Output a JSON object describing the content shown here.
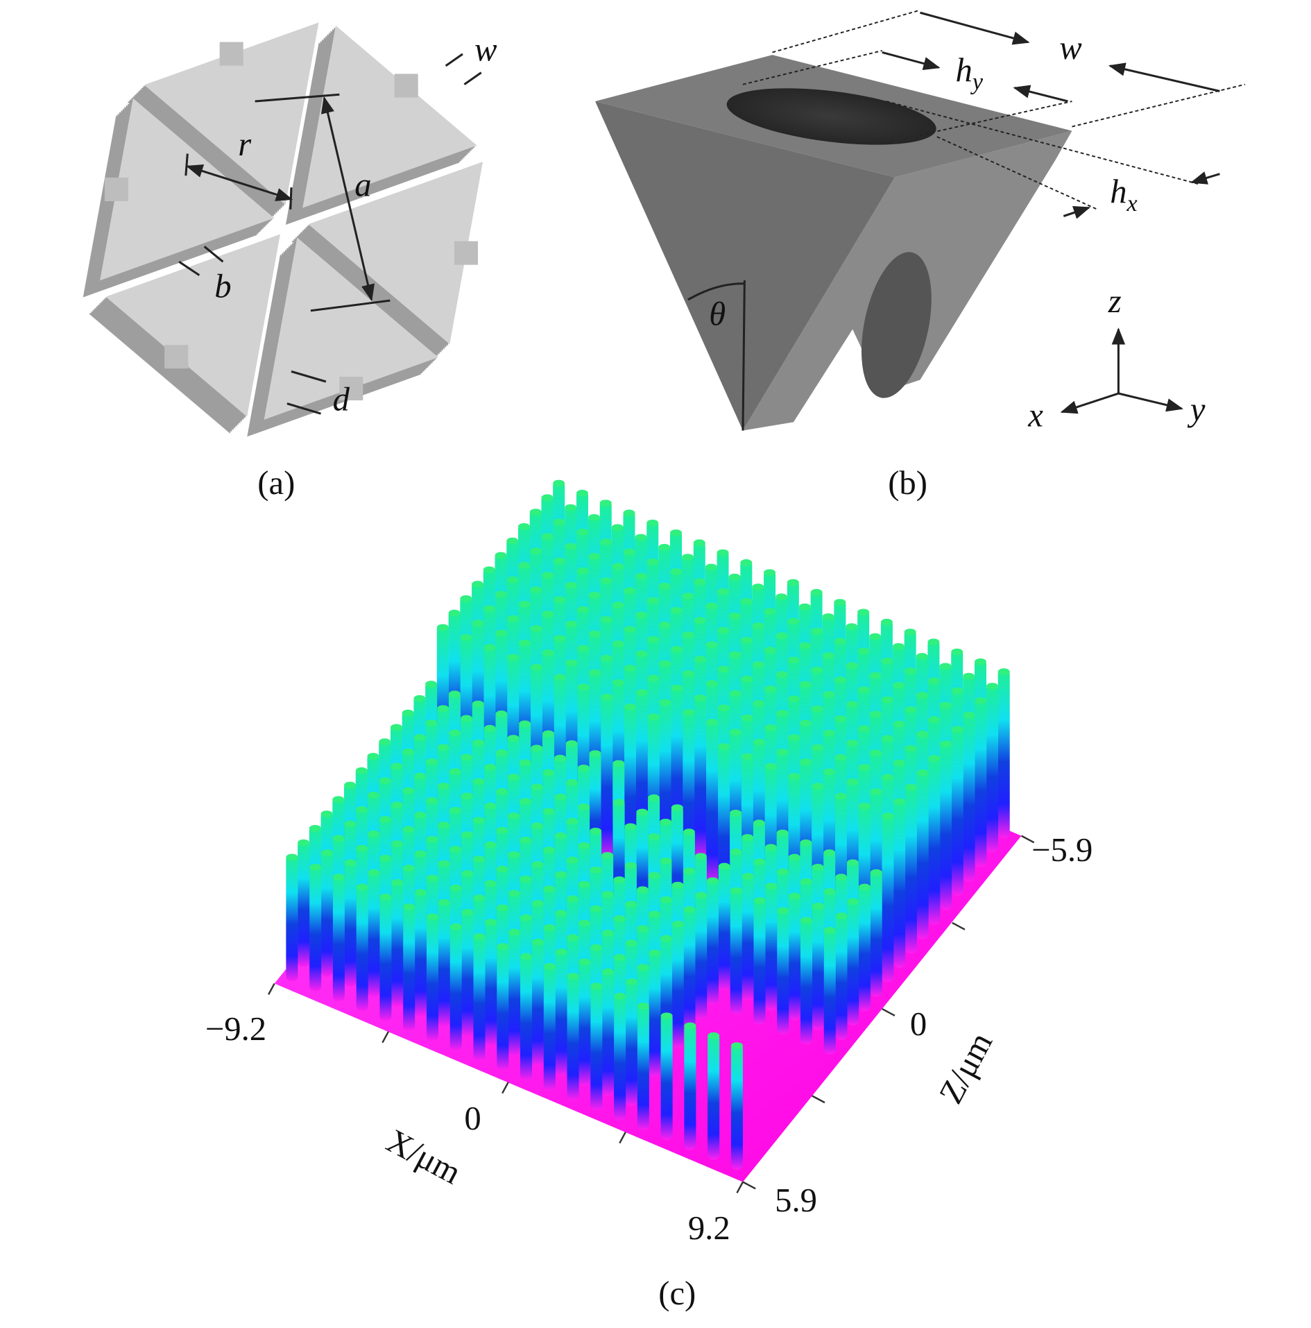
{
  "panel_a": {
    "caption": "(a)",
    "labels": {
      "r": "r",
      "a": "a",
      "b": "b",
      "d": "d",
      "w": "w"
    }
  },
  "panel_b": {
    "caption": "(b)",
    "labels": {
      "w": "w",
      "h_y": {
        "base": "h",
        "sub": "y"
      },
      "h_x": {
        "base": "h",
        "sub": "x"
      },
      "theta": "θ"
    },
    "axes": {
      "x": "x",
      "y": "y",
      "z": "z"
    }
  },
  "panel_c": {
    "caption": "(c)",
    "x_axis": {
      "label": "X/μm",
      "ticks": [
        "−9.2",
        "0",
        "9.2"
      ]
    },
    "z_axis": {
      "label": "Z/μm",
      "ticks": [
        "−5.9",
        "0",
        "5.9"
      ]
    }
  }
}
